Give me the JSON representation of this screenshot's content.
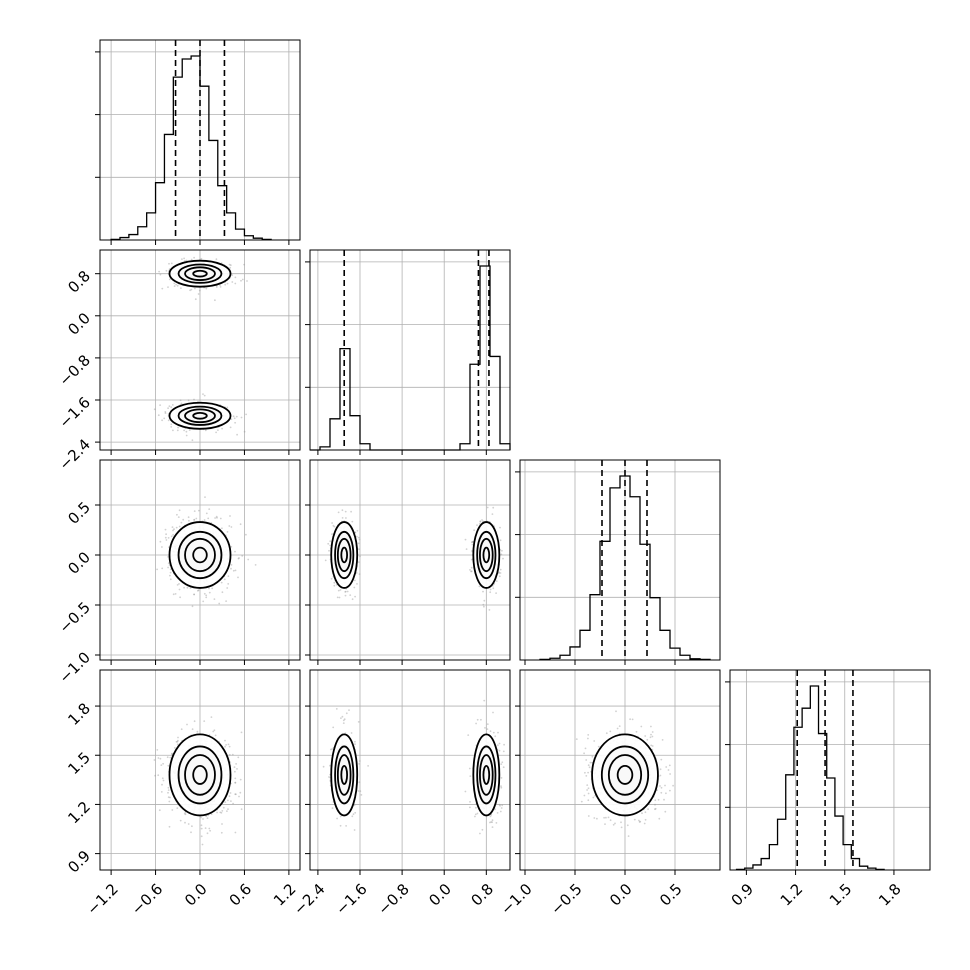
{
  "chart_data": {
    "type": "corner",
    "grid": true,
    "params": [
      {
        "range": [
          -1.35,
          1.35
        ],
        "ticks": [
          -1.2,
          -0.6,
          0.0,
          0.6,
          1.2
        ],
        "tick_labels": [
          "−1.2",
          "−0.6",
          "0.0",
          "0.6",
          "1.2"
        ],
        "quantiles": [
          -0.33,
          0.0,
          0.33
        ],
        "hist": {
          "edges_start": -1.2,
          "bin_width": 0.12,
          "counts": [
            1,
            4,
            9,
            22,
            45,
            95,
            175,
            270,
            300,
            305,
            255,
            165,
            90,
            45,
            18,
            7,
            3,
            1
          ]
        },
        "modes": [
          {
            "center": 0.0,
            "sd": 0.2
          }
        ]
      },
      {
        "range": [
          -2.55,
          1.25
        ],
        "ticks": [
          -2.4,
          -1.6,
          -0.8,
          0.0,
          0.8
        ],
        "tick_labels": [
          "−2.4",
          "−1.6",
          "−0.8",
          "0.0",
          "0.8"
        ],
        "quantiles": [
          -1.9,
          0.65,
          0.85
        ],
        "hist": {
          "edges_start": -2.55,
          "bin_width": 0.19,
          "counts": [
            0,
            2,
            20,
            65,
            22,
            4,
            0,
            0,
            0,
            0,
            0,
            0,
            0,
            0,
            0,
            4,
            55,
            118,
            60,
            4
          ]
        },
        "modes": [
          {
            "center": -1.9,
            "sd": 0.12
          },
          {
            "center": 0.8,
            "sd": 0.12
          }
        ]
      },
      {
        "range": [
          -1.05,
          0.95
        ],
        "ticks": [
          -1.0,
          -0.5,
          0.0,
          0.5
        ],
        "tick_labels": [
          "−1.0",
          "−0.5",
          "0.0",
          "0.5"
        ],
        "quantiles": [
          -0.23,
          0.0,
          0.22
        ],
        "hist": {
          "edges_start": -0.85,
          "bin_width": 0.1,
          "counts": [
            1,
            3,
            8,
            22,
            50,
            110,
            200,
            290,
            310,
            275,
            195,
            105,
            50,
            20,
            8,
            2,
            1
          ]
        },
        "modes": [
          {
            "center": 0.0,
            "sd": 0.16
          }
        ]
      },
      {
        "range": [
          0.8,
          2.02
        ],
        "ticks": [
          0.9,
          1.2,
          1.5,
          1.8
        ],
        "tick_labels": [
          "0.9",
          "1.2",
          "1.5",
          "1.8"
        ],
        "quantiles": [
          1.21,
          1.38,
          1.55
        ],
        "hist": {
          "edges_start": 0.84,
          "bin_width": 0.05,
          "counts": [
            1,
            3,
            8,
            18,
            40,
            80,
            150,
            225,
            255,
            290,
            215,
            145,
            85,
            40,
            18,
            6,
            3,
            1
          ]
        },
        "modes": [
          {
            "center": 1.38,
            "sd": 0.12
          }
        ]
      }
    ],
    "pairs": [
      {
        "row": 1,
        "col": 0,
        "levels": [
          0.9,
          0.6,
          0.35,
          0.12
        ]
      },
      {
        "row": 2,
        "col": 0,
        "levels": [
          0.9,
          0.6,
          0.35,
          0.12
        ]
      },
      {
        "row": 2,
        "col": 1,
        "levels": [
          0.9,
          0.6,
          0.35,
          0.12
        ]
      },
      {
        "row": 3,
        "col": 0,
        "levels": [
          0.9,
          0.6,
          0.35,
          0.12
        ]
      },
      {
        "row": 3,
        "col": 1,
        "levels": [
          0.9,
          0.6,
          0.35,
          0.12
        ]
      },
      {
        "row": 3,
        "col": 2,
        "levels": [
          0.9,
          0.6,
          0.35,
          0.12
        ]
      }
    ]
  }
}
